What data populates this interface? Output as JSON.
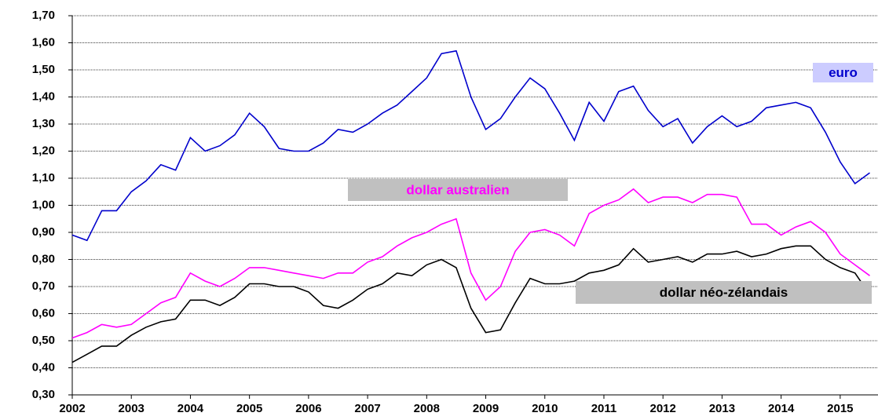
{
  "chart_data": {
    "type": "line",
    "x": [
      2002,
      2002.25,
      2002.5,
      2002.75,
      2003,
      2003.25,
      2003.5,
      2003.75,
      2004,
      2004.25,
      2004.5,
      2004.75,
      2005,
      2005.25,
      2005.5,
      2005.75,
      2006,
      2006.25,
      2006.5,
      2006.75,
      2007,
      2007.25,
      2007.5,
      2007.75,
      2008,
      2008.25,
      2008.5,
      2008.75,
      2009,
      2009.25,
      2009.5,
      2009.75,
      2010,
      2010.25,
      2010.5,
      2010.75,
      2011,
      2011.25,
      2011.5,
      2011.75,
      2012,
      2012.25,
      2012.5,
      2012.75,
      2013,
      2013.25,
      2013.5,
      2013.75,
      2014,
      2014.25,
      2014.5,
      2014.75,
      2015,
      2015.25,
      2015.5
    ],
    "series": [
      {
        "name": "euro",
        "color": "#0000cc",
        "values": [
          0.89,
          0.87,
          0.98,
          0.98,
          1.05,
          1.09,
          1.15,
          1.13,
          1.25,
          1.2,
          1.22,
          1.26,
          1.34,
          1.29,
          1.21,
          1.2,
          1.2,
          1.23,
          1.28,
          1.27,
          1.3,
          1.34,
          1.37,
          1.42,
          1.47,
          1.56,
          1.57,
          1.4,
          1.28,
          1.32,
          1.4,
          1.47,
          1.43,
          1.34,
          1.24,
          1.38,
          1.31,
          1.42,
          1.44,
          1.35,
          1.29,
          1.32,
          1.23,
          1.29,
          1.33,
          1.29,
          1.31,
          1.36,
          1.37,
          1.38,
          1.36,
          1.27,
          1.16,
          1.08,
          1.12
        ]
      },
      {
        "name": "dollar australien",
        "color": "#ff00ff",
        "values": [
          0.51,
          0.53,
          0.56,
          0.55,
          0.56,
          0.6,
          0.64,
          0.66,
          0.75,
          0.72,
          0.7,
          0.73,
          0.77,
          0.77,
          0.76,
          0.75,
          0.74,
          0.73,
          0.75,
          0.75,
          0.79,
          0.81,
          0.85,
          0.88,
          0.9,
          0.93,
          0.95,
          0.75,
          0.65,
          0.7,
          0.83,
          0.9,
          0.91,
          0.89,
          0.85,
          0.97,
          1.0,
          1.02,
          1.06,
          1.01,
          1.03,
          1.03,
          1.01,
          1.04,
          1.04,
          1.03,
          0.93,
          0.93,
          0.89,
          0.92,
          0.94,
          0.9,
          0.82,
          0.78,
          0.74
        ]
      },
      {
        "name": "dollar néo-zélandais",
        "color": "#000000",
        "values": [
          0.42,
          0.45,
          0.48,
          0.48,
          0.52,
          0.55,
          0.57,
          0.58,
          0.65,
          0.65,
          0.63,
          0.66,
          0.71,
          0.71,
          0.7,
          0.7,
          0.68,
          0.63,
          0.62,
          0.65,
          0.69,
          0.71,
          0.75,
          0.74,
          0.78,
          0.8,
          0.77,
          0.62,
          0.53,
          0.54,
          0.64,
          0.73,
          0.71,
          0.71,
          0.72,
          0.75,
          0.76,
          0.78,
          0.84,
          0.79,
          0.8,
          0.81,
          0.79,
          0.82,
          0.82,
          0.83,
          0.81,
          0.82,
          0.84,
          0.85,
          0.85,
          0.8,
          0.77,
          0.75,
          0.67
        ]
      }
    ],
    "xlim": [
      2002,
      2015.64
    ],
    "xticks": [
      2002,
      2003,
      2004,
      2005,
      2006,
      2007,
      2008,
      2009,
      2010,
      2011,
      2012,
      2013,
      2014,
      2015
    ],
    "ylim": [
      0.3,
      1.7
    ],
    "yticks": [
      {
        "value": 0.3,
        "label": "0,30"
      },
      {
        "value": 0.4,
        "label": "0,40"
      },
      {
        "value": 0.5,
        "label": "0,50"
      },
      {
        "value": 0.6,
        "label": "0,60"
      },
      {
        "value": 0.7,
        "label": "0,70"
      },
      {
        "value": 0.8,
        "label": "0,80"
      },
      {
        "value": 0.9,
        "label": "0,90"
      },
      {
        "value": 1.0,
        "label": "1,00"
      },
      {
        "value": 1.1,
        "label": "1,10"
      },
      {
        "value": 1.2,
        "label": "1,20"
      },
      {
        "value": 1.3,
        "label": "1,30"
      },
      {
        "value": 1.4,
        "label": "1,40"
      },
      {
        "value": 1.5,
        "label": "1,50"
      },
      {
        "value": 1.6,
        "label": "1,60"
      },
      {
        "value": 1.7,
        "label": "1,70"
      }
    ],
    "grid": true
  }
}
